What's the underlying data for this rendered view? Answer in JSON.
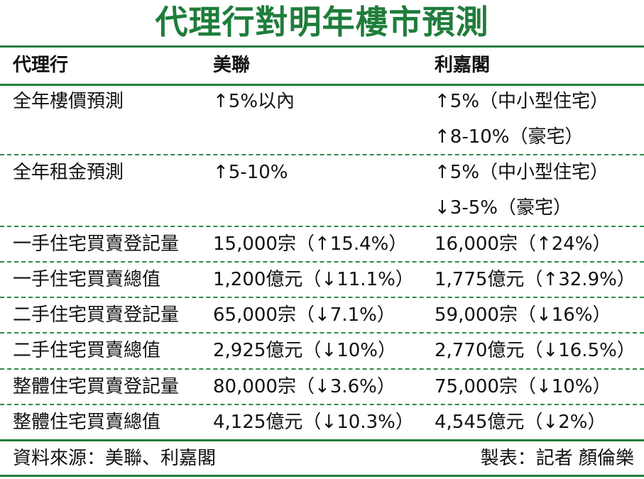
{
  "title": "代理行對明年樓市預測",
  "colors": {
    "title": "#1f7d3b",
    "rule": "#1f7d3b",
    "dash": "#2c8a4a",
    "text": "#111111"
  },
  "header": {
    "col1": "代理行",
    "col2": "美聯",
    "col3": "利嘉閣"
  },
  "rows": [
    {
      "label": "全年樓價預測",
      "col2": [
        "↑5%以內"
      ],
      "col3": [
        "↑5%（中小型住宅）",
        "↑8-10%（豪宅）"
      ]
    },
    {
      "label": "全年租金預測",
      "col2": [
        "↑5-10%"
      ],
      "col3": [
        "↑5%（中小型住宅）",
        "↓3-5%（豪宅）"
      ]
    },
    {
      "label": "一手住宅買賣登記量",
      "col2": [
        "15,000宗（↑15.4%）"
      ],
      "col3": [
        "16,000宗（↑24%）"
      ]
    },
    {
      "label": "一手住宅買賣總值",
      "col2": [
        "1,200億元（↓11.1%）"
      ],
      "col3": [
        "1,775億元（↑32.9%）"
      ]
    },
    {
      "label": "二手住宅買賣登記量",
      "col2": [
        "65,000宗（↓7.1%）"
      ],
      "col3": [
        "59,000宗（↓16%）"
      ]
    },
    {
      "label": "二手住宅買賣總值",
      "col2": [
        "2,925億元（↓10%）"
      ],
      "col3": [
        "2,770億元（↓16.5%）"
      ]
    },
    {
      "label": "整體住宅買賣登記量",
      "col2": [
        "80,000宗（↓3.6%）"
      ],
      "col3": [
        "75,000宗（↓10%）"
      ]
    },
    {
      "label": "整體住宅買賣總值",
      "col2": [
        "4,125億元（↓10.3%）"
      ],
      "col3": [
        "4,545億元（↓2%）"
      ]
    }
  ],
  "footer": {
    "source": "資料來源：美聯、利嘉閣",
    "credit": "製表：記者 顏倫樂"
  }
}
